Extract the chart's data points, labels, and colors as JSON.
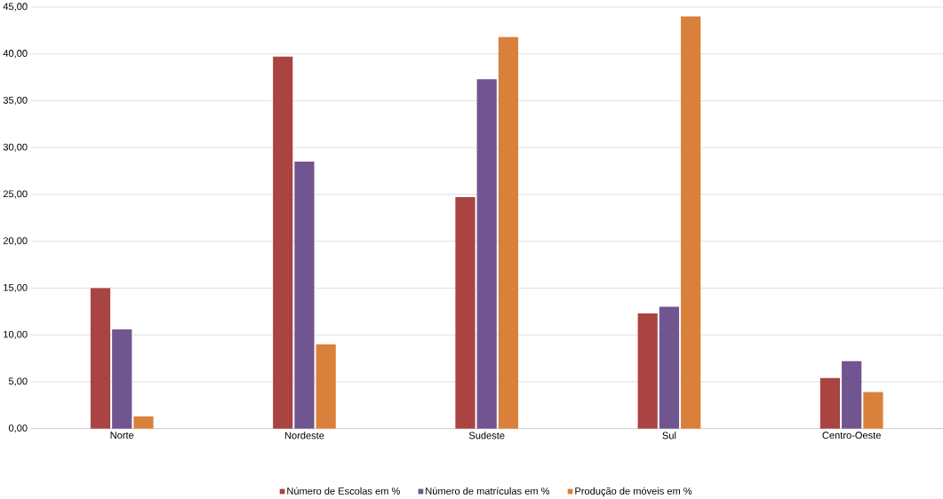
{
  "chart_data": {
    "type": "bar",
    "categories": [
      "Norte",
      "Nordeste",
      "Sudeste",
      "Sul",
      "Centro-Oeste"
    ],
    "series": [
      {
        "name": "Número de Escolas em %",
        "color": "#a94442",
        "values": [
          15,
          39.7,
          24.7,
          12.3,
          5.4
        ]
      },
      {
        "name": "Número de matrículas em %",
        "color": "#715590",
        "values": [
          10.6,
          28.5,
          37.3,
          13,
          7.2
        ]
      },
      {
        "name": "Produção de móveis em %",
        "color": "#d9803b",
        "values": [
          1.3,
          9,
          41.8,
          44,
          3.9
        ]
      }
    ],
    "ylim": [
      0,
      45
    ],
    "yticks": [
      {
        "value": 0,
        "label": "0,00"
      },
      {
        "value": 5,
        "label": "5,00"
      },
      {
        "value": 10,
        "label": "10,00"
      },
      {
        "value": 15,
        "label": "15,00"
      },
      {
        "value": 20,
        "label": "20,00"
      },
      {
        "value": 25,
        "label": "25,00"
      },
      {
        "value": 30,
        "label": "30,00"
      },
      {
        "value": 35,
        "label": "35,00"
      },
      {
        "value": 40,
        "label": "40,00"
      },
      {
        "value": 45,
        "label": "45,00"
      }
    ],
    "grid": "y",
    "legend": "bottom"
  }
}
